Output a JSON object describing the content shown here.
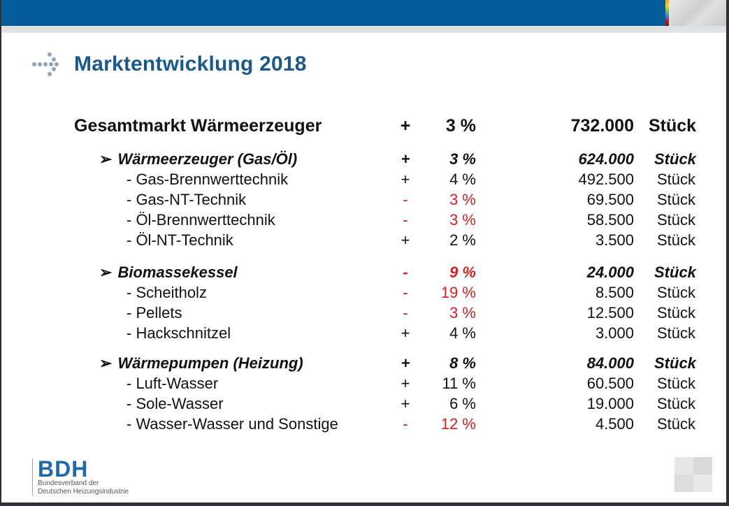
{
  "slide": {
    "title": "Marktentwicklung 2018",
    "colors": {
      "brand_blue": "#045b9a",
      "title_blue": "#1a5a8a",
      "negative_red": "#d62020"
    }
  },
  "table": {
    "total": {
      "label": "Gesamtmarkt Wärmeerzeuger",
      "sign": "+",
      "pct": "3 %",
      "qty": "732.000",
      "unit": "Stück"
    },
    "groups": [
      {
        "label": "Wärmeerzeuger (Gas/Öl)",
        "sign": "+",
        "pct": "3 %",
        "qty": "624.000",
        "unit": "Stück",
        "negative": false,
        "items": [
          {
            "label": "- Gas-Brennwerttechnik",
            "sign": "+",
            "pct": "4 %",
            "qty": "492.500",
            "unit": "Stück",
            "negative": false
          },
          {
            "label": "- Gas-NT-Technik",
            "sign": "-",
            "pct": "3 %",
            "qty": "69.500",
            "unit": "Stück",
            "negative": true
          },
          {
            "label": "- Öl-Brennwerttechnik",
            "sign": "-",
            "pct": "3 %",
            "qty": "58.500",
            "unit": "Stück",
            "negative": true
          },
          {
            "label": "- Öl-NT-Technik",
            "sign": "+",
            "pct": "2 %",
            "qty": "3.500",
            "unit": "Stück",
            "negative": false
          }
        ]
      },
      {
        "label": "Biomassekessel",
        "sign": "-",
        "pct": "9 %",
        "qty": "24.000",
        "unit": "Stück",
        "negative": true,
        "items": [
          {
            "label": "- Scheitholz",
            "sign": "-",
            "pct": "19 %",
            "qty": "8.500",
            "unit": "Stück",
            "negative": true
          },
          {
            "label": "- Pellets",
            "sign": "-",
            "pct": "3 %",
            "qty": "12.500",
            "unit": "Stück",
            "negative": true
          },
          {
            "label": "- Hackschnitzel",
            "sign": "+",
            "pct": "4 %",
            "qty": "3.000",
            "unit": "Stück",
            "negative": false
          }
        ]
      },
      {
        "label": "Wärmepumpen (Heizung)",
        "sign": "+",
        "pct": "8 %",
        "qty": "84.000",
        "unit": "Stück",
        "negative": false,
        "items": [
          {
            "label": "- Luft-Wasser",
            "sign": "+",
            "pct": "11 %",
            "qty": "60.500",
            "unit": "Stück",
            "negative": false
          },
          {
            "label": "- Sole-Wasser",
            "sign": "+",
            "pct": "6 %",
            "qty": "19.000",
            "unit": "Stück",
            "negative": false
          },
          {
            "label": "- Wasser-Wasser und Sonstige",
            "sign": "-",
            "pct": "12 %",
            "qty": "4.500",
            "unit": "Stück",
            "negative": true
          }
        ]
      }
    ]
  },
  "footer": {
    "logo_text": "BDH",
    "logo_line1": "Bundesverband der",
    "logo_line2": "Deutschen Heizungsindustrie"
  },
  "icons": {
    "title_marker": "dotted-arrow-icon",
    "bullet": "arrowhead-bullet-icon",
    "arrow_glyph": "➢"
  }
}
